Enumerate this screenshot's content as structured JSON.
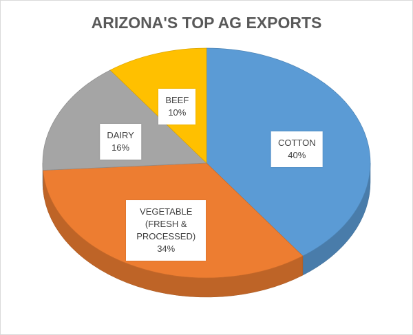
{
  "chart_data": {
    "type": "pie",
    "title": "ARIZONA'S TOP AG EXPORTS",
    "categories": [
      "COTTON",
      "VEGETABLE (FRESH & PROCESSED)",
      "DAIRY",
      "BEEF"
    ],
    "values": [
      40,
      34,
      16,
      10
    ],
    "value_labels": [
      "40%",
      "34%",
      "16%",
      "10%"
    ],
    "colors": [
      "#5b9bd5",
      "#ed7d31",
      "#a5a5a5",
      "#ffc000"
    ]
  }
}
